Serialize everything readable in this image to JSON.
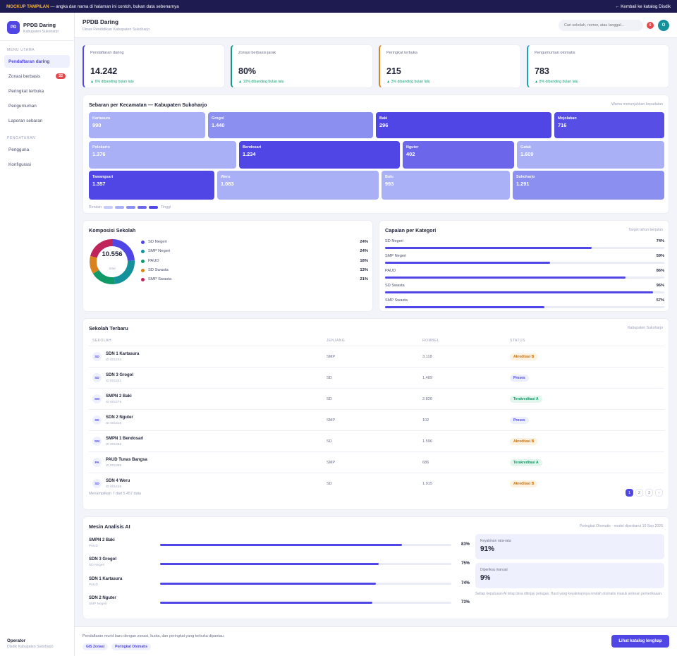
{
  "banner": {
    "label": "MOCKUP TAMPILAN",
    "text": " — angka dan nama di halaman ini contoh, bukan data sebenarnya",
    "back": "← Kembali ke katalog Disdik"
  },
  "brand": {
    "logo": "PD",
    "name": "PPDB Daring",
    "sub": "Kabupaten Sukoharjo"
  },
  "sidebar": {
    "section_main": "MENU UTAMA",
    "main_items": [
      {
        "label": "Pendaftaran daring"
      },
      {
        "label": "Zonasi berbasis",
        "badge": "32"
      },
      {
        "label": "Peringkat terbuka"
      },
      {
        "label": "Pengumuman"
      },
      {
        "label": "Laporan sebaran"
      }
    ],
    "section_settings": "PENGATURAN",
    "settings_items": [
      {
        "label": "Pengguna"
      },
      {
        "label": "Konfigurasi"
      }
    ],
    "footer_title": "Operator",
    "footer_sub": "Disdik Kabupaten Sukoharjo"
  },
  "header": {
    "title": "PPDB Daring",
    "subtitle": "Dinas Pendidikan Kabupaten Sukoharjo",
    "search_placeholder": "Cari sekolah, nomor, atau tanggal...",
    "notifications": "6",
    "avatar": "O"
  },
  "stats": [
    {
      "label": "Pendaftaran daring",
      "value": "14.242",
      "change": "▲ 6% dibanding bulan lalu",
      "accent": "#4f46e5"
    },
    {
      "label": "Zonasi berbasis jarak",
      "value": "80%",
      "change": "▲ 10% dibanding bulan lalu",
      "accent": "#0f9a8a"
    },
    {
      "label": "Peringkat terbuka",
      "value": "215",
      "change": "▲ 3% dibanding bulan lalu",
      "accent": "#d9831f"
    },
    {
      "label": "Pengumuman otomatis",
      "value": "783",
      "change": "▲ 8% dibanding bulan lalu",
      "accent": "#1aa3b3"
    }
  ],
  "treemap": {
    "title": "Sebaran per Kecamatan — Kabupaten Sukoharjo",
    "note": "Warna menunjukkan kepadatan",
    "tiles": [
      {
        "name": "Kartasura",
        "value": "990",
        "color": "#a9b0f6"
      },
      {
        "name": "Grogol",
        "value": "1.440",
        "color": "#8a8ff0"
      },
      {
        "name": "Baki",
        "value": "296",
        "color": "#4f46e5"
      },
      {
        "name": "Mojolaban",
        "value": "716",
        "color": "#574ee6"
      },
      {
        "name": "Polokarto",
        "value": "1.376",
        "color": "#a9b0f6"
      },
      {
        "name": "Bendosari",
        "value": "1.234",
        "color": "#4f46e5"
      },
      {
        "name": "Nguter",
        "value": "402",
        "color": "#6c66ea"
      },
      {
        "name": "Gatak",
        "value": "1.609",
        "color": "#a9b0f6"
      },
      {
        "name": "Tawangsari",
        "value": "1.357",
        "color": "#4f46e5"
      },
      {
        "name": "Weru",
        "value": "1.083",
        "color": "#a9b0f6"
      },
      {
        "name": "Bulu",
        "value": "993",
        "color": "#aab1f7"
      },
      {
        "name": "Sukoharjo",
        "value": "1.291",
        "color": "#8a8ff0"
      }
    ],
    "legend_low": "Rendah",
    "legend_high": "Tinggi",
    "legend_colors": [
      "#c7cbf9",
      "#a9b0f6",
      "#8a8ff0",
      "#6c66ea",
      "#4f46e5"
    ]
  },
  "composition": {
    "title": "Komposisi Sekolah",
    "total": "10.556",
    "total_label": "total",
    "items": [
      {
        "label": "SD Negeri",
        "value": "24%",
        "color": "#4f46e5"
      },
      {
        "label": "SMP Negeri",
        "value": "24%",
        "color": "#14919b"
      },
      {
        "label": "PAUD",
        "value": "18%",
        "color": "#0f9a68"
      },
      {
        "label": "SD Swasta",
        "value": "13%",
        "color": "#d9831f"
      },
      {
        "label": "SMP Swasta",
        "value": "21%",
        "color": "#c0245a"
      }
    ]
  },
  "chart_data": {
    "type": "pie",
    "title": "Komposisi Sekolah",
    "categories": [
      "SD Negeri",
      "SMP Negeri",
      "PAUD",
      "SD Swasta",
      "SMP Swasta"
    ],
    "values": [
      24,
      24,
      18,
      13,
      21
    ]
  },
  "achievement": {
    "title": "Capaian per Kategori",
    "note": "Target tahun berjalan",
    "items": [
      {
        "label": "SD Negeri",
        "value": "74%",
        "pct": 74
      },
      {
        "label": "SMP Negeri",
        "value": "59%",
        "pct": 59
      },
      {
        "label": "PAUD",
        "value": "86%",
        "pct": 86
      },
      {
        "label": "SD Swasta",
        "value": "96%",
        "pct": 96
      },
      {
        "label": "SMP Swasta",
        "value": "57%",
        "pct": 57
      }
    ]
  },
  "schools": {
    "title": "Sekolah Terbaru",
    "note": "Kabupaten Sukoharjo",
    "columns": [
      "SEKOLAH",
      "JENJANG",
      "ROMBEL",
      "STATUS"
    ],
    "rows": [
      {
        "badge": "SD",
        "name": "SDN 1 Kartasura",
        "id": "ID 001204",
        "level": "SMP",
        "rombel": "3.118",
        "status": "Akreditasi B",
        "kind": "warn"
      },
      {
        "badge": "SD",
        "name": "SDN 3 Grogol",
        "id": "ID 001241",
        "level": "SD",
        "rombel": "1.489",
        "status": "Proses",
        "kind": "info"
      },
      {
        "badge": "SM",
        "name": "SMPN 2 Baki",
        "id": "ID 001278",
        "level": "SD",
        "rombel": "2.820",
        "status": "Terakreditasi A",
        "kind": "ok"
      },
      {
        "badge": "SD",
        "name": "SDN 2 Nguter",
        "id": "ID 001315",
        "level": "SMP",
        "rombel": "102",
        "status": "Proses",
        "kind": "info"
      },
      {
        "badge": "SM",
        "name": "SMPN 1 Bendosari",
        "id": "ID 001352",
        "level": "SD",
        "rombel": "1.596",
        "status": "Akreditasi B",
        "kind": "warn"
      },
      {
        "badge": "PA",
        "name": "PAUD Tunas Bangsa",
        "id": "ID 001389",
        "level": "SMP",
        "rombel": "686",
        "status": "Terakreditasi A",
        "kind": "ok"
      },
      {
        "badge": "SD",
        "name": "SDN 4 Weru",
        "id": "ID 001426",
        "level": "SD",
        "rombel": "1.915",
        "status": "Akreditasi B",
        "kind": "warn"
      }
    ],
    "footer": "Menampilkan 7 dari 5.457 data",
    "pages": [
      "1",
      "2",
      "3",
      "›"
    ]
  },
  "ai": {
    "title": "Mesin Analisis AI",
    "note": "Peringkat Otomatis · model diperbarui 10 Sep 2026",
    "rows": [
      {
        "name": "SMPN 2 Baki",
        "type": "PAUD",
        "value": "83%",
        "pct": 83
      },
      {
        "name": "SDN 3 Grogol",
        "type": "SD Negeri",
        "value": "75%",
        "pct": 75
      },
      {
        "name": "SDN 1 Kartasura",
        "type": "PAUD",
        "value": "74%",
        "pct": 74
      },
      {
        "name": "SDN 2 Nguter",
        "type": "SMP Negeri",
        "value": "73%",
        "pct": 73
      }
    ],
    "box1_label": "Keyakinan rata-rata",
    "box1_value": "91%",
    "box2_label": "Diperiksa manual",
    "box2_value": "9%",
    "disclaimer": "Setiap keputusan AI tetap bisa ditinjau petugas. Hasil yang keyakinannya rendah otomatis masuk antrean pemeriksaan."
  },
  "footer": {
    "text": "Pendaftaran murid baru dengan zonasi, kuota, dan peringkat yang terbuka dipantau.",
    "tags": [
      "GIS Zonasi",
      "Peringkat Otomatis"
    ],
    "button": "Lihat katalog lengkap"
  }
}
